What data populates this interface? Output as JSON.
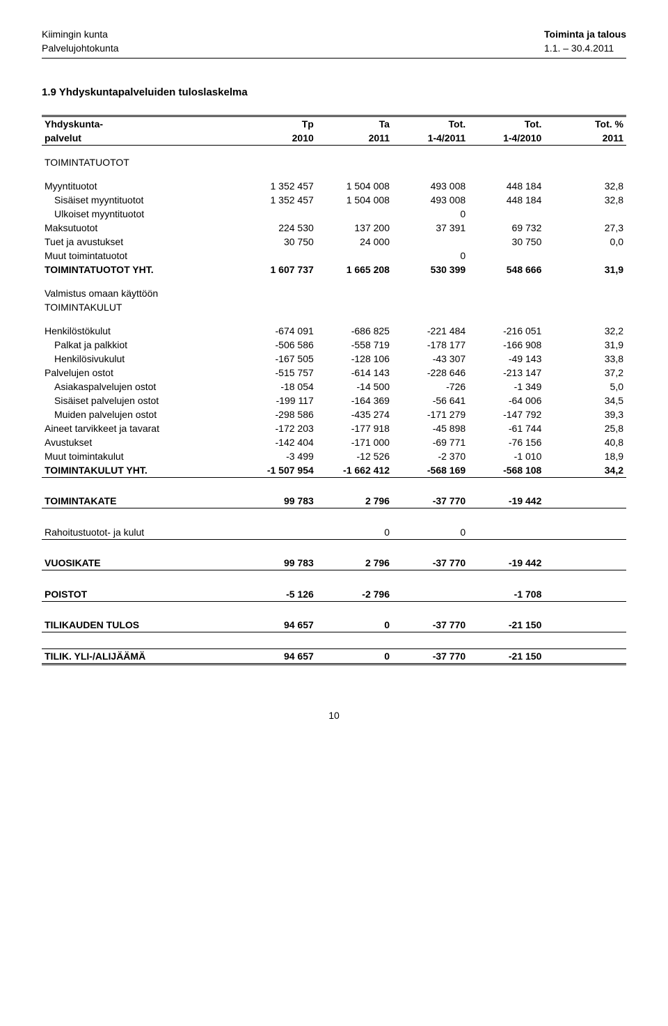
{
  "header": {
    "left1": "Kiimingin kunta",
    "left2": "Palvelujohtokunta",
    "right1": "Toiminta ja talous",
    "right2": "1.1. – 30.4.2011"
  },
  "section_title": "1.9 Yhdyskuntapalveluiden tuloslaskelma",
  "thead": {
    "r1c0": "Yhdyskunta-",
    "r1c1": "Tp",
    "r1c2": "Ta",
    "r1c3": "Tot.",
    "r1c4": "Tot.",
    "r1c5": "Tot. %",
    "r2c0": "palvelut",
    "r2c1": "2010",
    "r2c2": "2011",
    "r2c3": "1-4/2011",
    "r2c4": "1-4/2010",
    "r2c5": "2011"
  },
  "rows": {
    "toimintatuotot_hdr": "TOIMINTATUOTOT",
    "myyntituotot": {
      "label": "Myyntituotot",
      "c1": "1 352 457",
      "c2": "1 504 008",
      "c3": "493 008",
      "c4": "448 184",
      "c5": "32,8"
    },
    "sis_myyntituotot": {
      "label": "Sisäiset myyntituotot",
      "c1": "1 352 457",
      "c2": "1 504 008",
      "c3": "493 008",
      "c4": "448 184",
      "c5": "32,8"
    },
    "ulk_myyntituotot": {
      "label": "Ulkoiset myyntituotot",
      "c3": "0"
    },
    "maksutuotot": {
      "label": "Maksutuotot",
      "c1": "224 530",
      "c2": "137 200",
      "c3": "37 391",
      "c4": "69 732",
      "c5": "27,3"
    },
    "tuet": {
      "label": "Tuet ja avustukset",
      "c1": "30 750",
      "c2": "24 000",
      "c4": "30 750",
      "c5": "0,0"
    },
    "muut_tuotot": {
      "label": "Muut toimintatuotot",
      "c3": "0"
    },
    "toimintatuotot_yht": {
      "label": "TOIMINTATUOTOT YHT.",
      "c1": "1 607 737",
      "c2": "1 665 208",
      "c3": "530 399",
      "c4": "548 666",
      "c5": "31,9"
    },
    "valmistus": "Valmistus omaan käyttöön",
    "toimintakulut_hdr": "TOIMINTAKULUT",
    "henkilostokulut": {
      "label": "Henkilöstökulut",
      "c1": "-674 091",
      "c2": "-686 825",
      "c3": "-221 484",
      "c4": "-216 051",
      "c5": "32,2"
    },
    "palkat": {
      "label": "Palkat ja palkkiot",
      "c1": "-506 586",
      "c2": "-558 719",
      "c3": "-178 177",
      "c4": "-166 908",
      "c5": "31,9"
    },
    "henk_sivu": {
      "label": "Henkilösivukulut",
      "c1": "-167 505",
      "c2": "-128 106",
      "c3": "-43 307",
      "c4": "-49 143",
      "c5": "33,8"
    },
    "palv_ostot": {
      "label": "Palvelujen ostot",
      "c1": "-515 757",
      "c2": "-614 143",
      "c3": "-228 646",
      "c4": "-213 147",
      "c5": "37,2"
    },
    "asiakas_ostot": {
      "label": "Asiakaspalvelujen ostot",
      "c1": "-18 054",
      "c2": "-14 500",
      "c3": "-726",
      "c4": "-1 349",
      "c5": "5,0"
    },
    "sis_palv_ostot": {
      "label": "Sisäiset palvelujen ostot",
      "c1": "-199 117",
      "c2": "-164 369",
      "c3": "-56 641",
      "c4": "-64 006",
      "c5": "34,5"
    },
    "muiden_palv_ostot": {
      "label": "Muiden palvelujen ostot",
      "c1": "-298 586",
      "c2": "-435 274",
      "c3": "-171 279",
      "c4": "-147 792",
      "c5": "39,3"
    },
    "aineet": {
      "label": "Aineet tarvikkeet ja tavarat",
      "c1": "-172 203",
      "c2": "-177 918",
      "c3": "-45 898",
      "c4": "-61 744",
      "c5": "25,8"
    },
    "avustukset": {
      "label": "Avustukset",
      "c1": "-142 404",
      "c2": "-171 000",
      "c3": "-69 771",
      "c4": "-76 156",
      "c5": "40,8"
    },
    "muut_kulut": {
      "label": "Muut toimintakulut",
      "c1": "-3 499",
      "c2": "-12 526",
      "c3": "-2 370",
      "c4": "-1 010",
      "c5": "18,9"
    },
    "toimintakulut_yht": {
      "label": "TOIMINTAKULUT YHT.",
      "c1": "-1 507 954",
      "c2": "-1 662 412",
      "c3": "-568 169",
      "c4": "-568 108",
      "c5": "34,2"
    },
    "toimintakate": {
      "label": "TOIMINTAKATE",
      "c1": "99 783",
      "c2": "2 796",
      "c3": "-37 770",
      "c4": "-19 442"
    },
    "rahoitus": {
      "label": "Rahoitustuotot- ja kulut",
      "c2": "0",
      "c3": "0"
    },
    "vuosikate": {
      "label": "VUOSIKATE",
      "c1": "99 783",
      "c2": "2 796",
      "c3": "-37 770",
      "c4": "-19 442"
    },
    "poistot": {
      "label": "POISTOT",
      "c1": "-5 126",
      "c2": "-2 796",
      "c4": "-1 708"
    },
    "tilikauden_tulos": {
      "label": "TILIKAUDEN TULOS",
      "c1": "94 657",
      "c2": "0",
      "c3": "-37 770",
      "c4": "-21 150"
    },
    "tilik_yli": {
      "label": "TILIK. YLI-/ALIJÄÄMÄ",
      "c1": "94 657",
      "c2": "0",
      "c3": "-37 770",
      "c4": "-21 150"
    }
  },
  "page_number": "10"
}
